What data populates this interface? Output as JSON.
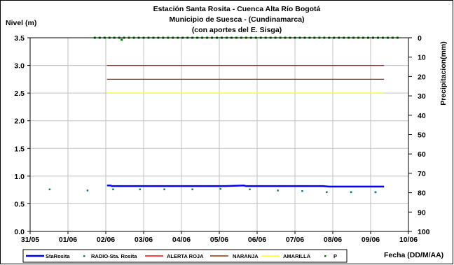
{
  "chart_data": {
    "type": "line",
    "title": [
      "Estación Santa Rosita - Cuenca Alta Río Bogotá",
      "Municipio de Suesca - (Cundinamarca)",
      "(con aportes del  E. Sisga)"
    ],
    "ylabel": "Nivel (m)",
    "y2label": "Precipitacion(mm)",
    "xlabel": "Fecha (DD/M/AA)",
    "ylim": [
      0,
      3.5
    ],
    "y2lim": [
      0,
      100
    ],
    "y2_inverted": true,
    "xlim_days": [
      0,
      310
    ],
    "x_ticks": [
      "31/05",
      "01/06",
      "02/06",
      "03/06",
      "04/06",
      "05/06",
      "06/06",
      "07/06",
      "08/06",
      "09/06",
      "10/06"
    ],
    "y_ticks": [
      "0.0",
      "0.5",
      "1.0",
      "1.5",
      "2.0",
      "2.5",
      "3.0",
      "3.5"
    ],
    "y2_ticks": [
      "0",
      "10",
      "20",
      "30",
      "40",
      "50",
      "60",
      "70",
      "80",
      "90",
      "100"
    ],
    "grid": true,
    "legend_position": "bottom",
    "series": [
      {
        "name": "StaRosita",
        "style": "line",
        "color": "#0000ff",
        "x": [
          63,
          66,
          67,
          68,
          80,
          100,
          130,
          160,
          175,
          177,
          200,
          240,
          245,
          275,
          290
        ],
        "y": [
          0.83,
          0.83,
          0.82,
          0.82,
          0.82,
          0.82,
          0.82,
          0.82,
          0.83,
          0.82,
          0.82,
          0.82,
          0.81,
          0.81,
          0.81
        ]
      },
      {
        "name": "RADIO-Sta. Rosita",
        "style": "marker",
        "color": "#008080",
        "x": [
          16,
          47,
          68,
          90,
          110,
          133,
          156,
          180,
          203,
          223,
          243,
          263,
          263,
          283,
          283
        ],
        "y": [
          0.76,
          0.74,
          0.76,
          0.76,
          0.76,
          0.76,
          0.77,
          0.76,
          0.74,
          0.73,
          0.71,
          0.71,
          0.71,
          0.71,
          0.71
        ]
      },
      {
        "name": "ALERTA ROJA",
        "style": "line",
        "color": "#ff0000",
        "x": [
          63,
          290
        ],
        "y": [
          3.0,
          3.0
        ]
      },
      {
        "name": "NARANJA",
        "style": "line",
        "color": "#993300",
        "x": [
          63,
          290
        ],
        "y": [
          2.75,
          2.75
        ]
      },
      {
        "name": "AMARILLA",
        "style": "line",
        "color": "#ffff00",
        "x": [
          63,
          290
        ],
        "y": [
          2.5,
          2.5
        ]
      },
      {
        "name": "P",
        "style": "marker",
        "axis": "secondary",
        "color": "#008000",
        "x": [
          53,
          57,
          61,
          65,
          69,
          73,
          75,
          77,
          81,
          85,
          89,
          93,
          97,
          101,
          105,
          109,
          113,
          117,
          121,
          125,
          129,
          133,
          137,
          141,
          145,
          149,
          153,
          157,
          161,
          165,
          169,
          173,
          177,
          181,
          185,
          189,
          193,
          197,
          201,
          205,
          209,
          213,
          217,
          221,
          225,
          229,
          233,
          237,
          241,
          245,
          249,
          253,
          257,
          261,
          265,
          269,
          273,
          277,
          281,
          285,
          289,
          293,
          297,
          301
        ],
        "y": [
          0,
          0,
          0,
          0,
          0,
          0,
          1,
          0,
          0,
          0,
          0,
          0,
          0,
          0,
          0,
          0,
          0,
          0,
          0,
          0,
          0,
          0,
          0,
          0,
          0,
          0,
          0,
          0,
          0,
          0,
          0,
          0,
          0,
          0,
          0,
          0,
          0,
          0,
          0,
          0,
          0,
          0,
          0,
          0,
          0,
          0,
          0,
          0,
          0,
          0,
          0,
          0,
          0,
          0,
          0,
          0,
          0,
          0,
          0,
          0,
          0,
          0,
          0,
          0
        ]
      }
    ]
  }
}
